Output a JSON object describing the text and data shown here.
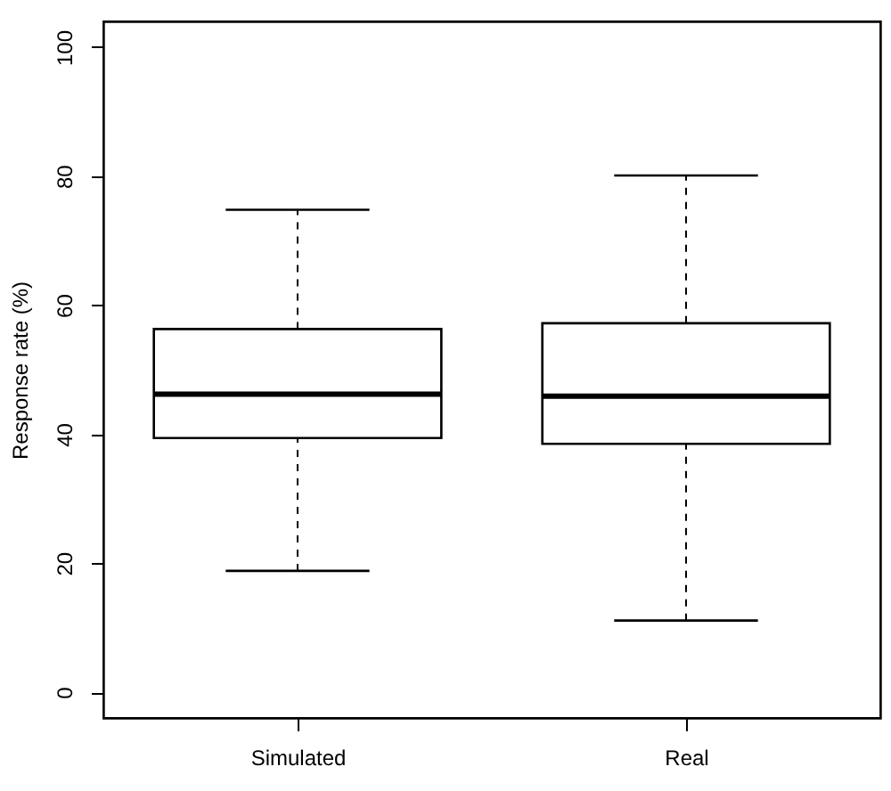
{
  "chart_data": {
    "type": "box",
    "ylabel": "Response rate (%)",
    "categories": [
      "Simulated",
      "Real"
    ],
    "boxes": [
      {
        "low": 18.8,
        "q1": 39.4,
        "median": 46.2,
        "q3": 56.3,
        "high": 74.8
      },
      {
        "low": 11.1,
        "q1": 38.5,
        "median": 45.9,
        "q3": 57.2,
        "high": 80.1
      }
    ],
    "ylim": [
      -4,
      104
    ],
    "yticks": [
      0,
      20,
      40,
      60,
      80,
      100
    ]
  }
}
